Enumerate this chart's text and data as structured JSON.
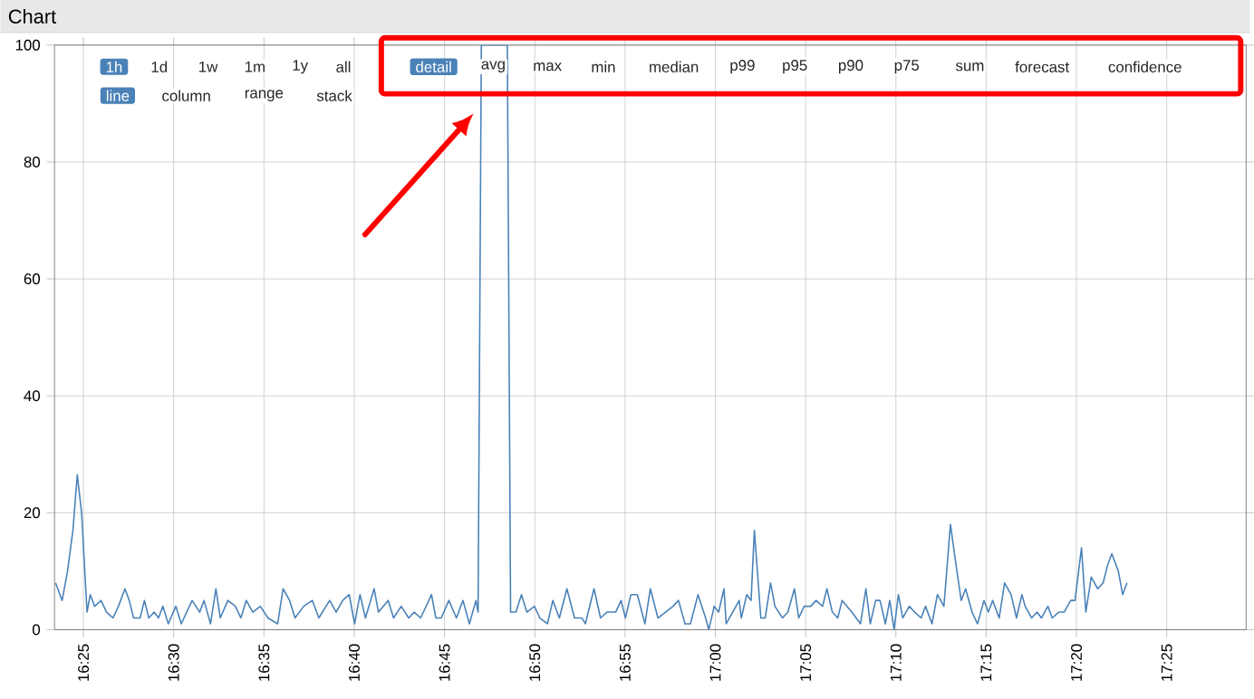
{
  "chart_data": {
    "type": "line",
    "title": "Chart",
    "x": [
      16.391,
      16.397,
      16.402,
      16.407,
      16.411,
      16.415,
      16.42,
      16.423,
      16.427,
      16.433,
      16.438,
      16.444,
      16.449,
      16.455,
      16.459,
      16.463,
      16.469,
      16.473,
      16.477,
      16.482,
      16.486,
      16.49,
      16.495,
      16.502,
      16.507,
      16.517,
      16.524,
      16.528,
      16.534,
      16.539,
      16.543,
      16.55,
      16.557,
      16.562,
      16.567,
      16.573,
      16.58,
      16.587,
      16.596,
      16.601,
      16.607,
      16.612,
      16.62,
      16.628,
      16.634,
      16.644,
      16.65,
      16.656,
      16.662,
      16.667,
      16.672,
      16.677,
      16.685,
      16.689,
      16.698,
      16.703,
      16.71,
      16.717,
      16.722,
      16.728,
      16.738,
      16.742,
      16.747,
      16.754,
      16.761,
      16.767,
      16.773,
      16.779,
      16.781,
      16.784,
      16.808,
      16.811,
      16.816,
      16.821,
      16.826,
      16.833,
      16.838,
      16.845,
      16.85,
      16.856,
      16.863,
      16.87,
      16.877,
      16.88,
      16.888,
      16.894,
      16.9,
      16.908,
      16.913,
      16.917,
      16.922,
      16.928,
      16.935,
      16.94,
      16.947,
      16.954,
      16.961,
      16.966,
      16.972,
      16.977,
      16.984,
      16.991,
      16.994,
      16.999,
      17.003,
      17.008,
      17.01,
      17.016,
      17.022,
      17.024,
      17.029,
      17.033,
      17.036,
      17.042,
      17.046,
      17.051,
      17.055,
      17.062,
      17.067,
      17.073,
      17.077,
      17.082,
      17.088,
      17.093,
      17.099,
      17.103,
      17.108,
      17.113,
      17.117,
      17.126,
      17.134,
      17.139,
      17.143,
      17.148,
      17.152,
      17.157,
      17.161,
      17.165,
      17.169,
      17.173,
      17.179,
      17.184,
      17.19,
      17.194,
      17.2,
      17.205,
      17.211,
      17.217,
      17.223,
      17.227,
      17.231,
      17.237,
      17.242,
      17.248,
      17.252,
      17.256,
      17.262,
      17.267,
      17.273,
      17.278,
      17.283,
      17.286,
      17.292,
      17.297,
      17.301,
      17.307,
      17.311,
      17.317,
      17.322,
      17.328,
      17.332,
      17.338,
      17.342,
      17.347,
      17.353,
      17.358,
      17.362,
      17.366,
      17.372,
      17.376,
      17.38
    ],
    "values": [
      8,
      5,
      10,
      17,
      26.5,
      20,
      3,
      6,
      4,
      5,
      3,
      2,
      4,
      7,
      5,
      2,
      2,
      5,
      2,
      3,
      2,
      4,
      1,
      4,
      1,
      5,
      3,
      5,
      1,
      7,
      2,
      5,
      4,
      2,
      5,
      3,
      4,
      2,
      1,
      7,
      5,
      2,
      4,
      5,
      2,
      5,
      3,
      5,
      6,
      1,
      6,
      2,
      7,
      3,
      5,
      2,
      4,
      2,
      3,
      2,
      6,
      2,
      2,
      5,
      2,
      5,
      1,
      5,
      3,
      100,
      100,
      3,
      3,
      6,
      3,
      4,
      2,
      1,
      5,
      2,
      7,
      2,
      2,
      1,
      7,
      2,
      3,
      3,
      5,
      2,
      6,
      6,
      1,
      7,
      2,
      3,
      4,
      5,
      1,
      1,
      6,
      2,
      0,
      4,
      3,
      7,
      1,
      3,
      5,
      2,
      6,
      5,
      17,
      2,
      2,
      8,
      4,
      2,
      3,
      7,
      2,
      4,
      4,
      5,
      4,
      7,
      3,
      2,
      5,
      3,
      1,
      7,
      1,
      5,
      5,
      1,
      5,
      0,
      6,
      2,
      4,
      3,
      2,
      4,
      1,
      6,
      4,
      18,
      10,
      5,
      7,
      3,
      1,
      5,
      3,
      5,
      2,
      8,
      6,
      2,
      6,
      4,
      2,
      3,
      2,
      4,
      2,
      3,
      3,
      5,
      5,
      14,
      3,
      9,
      7,
      8,
      11,
      13,
      10,
      6,
      8
    ],
    "color": "#4a82b8",
    "xlim": [
      16.39,
      17.49
    ],
    "xticks": [
      {
        "value": 16.41667,
        "label": "16:25"
      },
      {
        "value": 16.5,
        "label": "16:30"
      },
      {
        "value": 16.58333,
        "label": "16:35"
      },
      {
        "value": 16.66667,
        "label": "16:40"
      },
      {
        "value": 16.75,
        "label": "16:45"
      },
      {
        "value": 16.83333,
        "label": "16:50"
      },
      {
        "value": 16.91667,
        "label": "16:55"
      },
      {
        "value": 17,
        "label": "17:00"
      },
      {
        "value": 17.08333,
        "label": "17:05"
      },
      {
        "value": 17.16667,
        "label": "17:10"
      },
      {
        "value": 17.25,
        "label": "17:15"
      },
      {
        "value": 17.33333,
        "label": "17:20"
      },
      {
        "value": 17.41667,
        "label": "17:25"
      }
    ],
    "ylim": [
      0,
      100
    ],
    "yticks": [
      0,
      20,
      40,
      60,
      80,
      100
    ],
    "grid": true,
    "annotations": [
      "1h",
      "1d",
      "1w",
      "1m",
      "1y",
      "all",
      "line",
      "column",
      "range",
      "stack",
      "detail",
      "avg",
      "max",
      "min",
      "median",
      "p99",
      "p95",
      "p90",
      "p75",
      "sum",
      "forecast",
      "confidence"
    ]
  }
}
